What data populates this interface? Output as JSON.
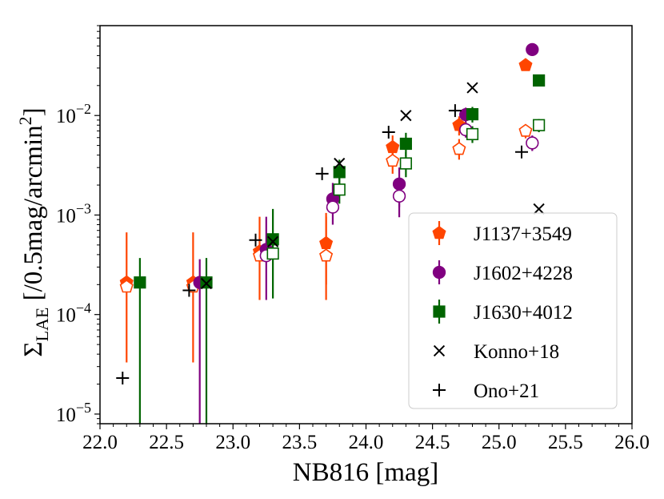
{
  "chart_data": {
    "type": "scatter",
    "xlabel": "NB816 [mag]",
    "ylabel": {
      "sigma": "Σ",
      "sub": "LAE",
      "main": " [/0.5mag/arcmin",
      "sup": "2",
      "end": "]"
    },
    "xlim": [
      22.0,
      26.0
    ],
    "ylim": [
      8e-06,
      0.08
    ],
    "yscale": "log",
    "grid": false,
    "legend_position": "lower-right",
    "x_ticks": [
      {
        "value": 22.0,
        "label": "22.0"
      },
      {
        "value": 22.5,
        "label": "22.5"
      },
      {
        "value": 23.0,
        "label": "23.0"
      },
      {
        "value": 23.5,
        "label": "23.5"
      },
      {
        "value": 24.0,
        "label": "24.0"
      },
      {
        "value": 24.5,
        "label": "24.5"
      },
      {
        "value": 25.0,
        "label": "25.0"
      },
      {
        "value": 25.5,
        "label": "25.5"
      },
      {
        "value": 26.0,
        "label": "26.0"
      }
    ],
    "y_ticks": [
      {
        "value": 1e-05,
        "base": "10",
        "exp": "−5"
      },
      {
        "value": 0.0001,
        "base": "10",
        "exp": "−4"
      },
      {
        "value": 0.001,
        "base": "10",
        "exp": "−3"
      },
      {
        "value": 0.01,
        "base": "10",
        "exp": "−2"
      }
    ],
    "series": [
      {
        "name": "J1137+3549",
        "marker": "pentagon",
        "color": "#ff4500",
        "filled": [
          {
            "x": 22.2,
            "y": 0.00021,
            "ylo": 3.3e-05,
            "yhi": 0.00067
          },
          {
            "x": 22.7,
            "y": 0.00021,
            "ylo": 3.3e-05,
            "yhi": 0.00067
          },
          {
            "x": 23.2,
            "y": 0.00043,
            "ylo": 0.00014,
            "yhi": 0.00096
          },
          {
            "x": 23.7,
            "y": 0.00052,
            "ylo": 0.0002,
            "yhi": 0.00105
          },
          {
            "x": 24.2,
            "y": 0.0048,
            "ylo": 0.0035,
            "yhi": 0.0063
          },
          {
            "x": 24.7,
            "y": 0.008,
            "ylo": 0.0063,
            "yhi": 0.0098
          },
          {
            "x": 25.2,
            "y": 0.032,
            "ylo": 0.029,
            "yhi": 0.035
          }
        ],
        "open": [
          {
            "x": 22.2,
            "y": 0.00019
          },
          {
            "x": 22.7,
            "y": 0.00019
          },
          {
            "x": 23.2,
            "y": 0.00039
          },
          {
            "x": 23.7,
            "y": 0.00039,
            "ylo": 0.00014,
            "yhi": 0.00096
          },
          {
            "x": 24.2,
            "y": 0.0035,
            "ylo": 0.0026,
            "yhi": 0.0046
          },
          {
            "x": 24.7,
            "y": 0.0046,
            "ylo": 0.0036,
            "yhi": 0.0058
          },
          {
            "x": 25.2,
            "y": 0.007,
            "ylo": 0.0059,
            "yhi": 0.0081
          }
        ]
      },
      {
        "name": "J1602+4228",
        "marker": "circle",
        "color": "#800080",
        "filled": [
          {
            "x": 22.75,
            "y": 0.00021,
            "ylo": 8e-06,
            "yhi": 0.00036
          },
          {
            "x": 23.25,
            "y": 0.00045,
            "ylo": 0.00014,
            "yhi": 0.00096
          },
          {
            "x": 23.75,
            "y": 0.00145,
            "ylo": 0.0008,
            "yhi": 0.0021
          },
          {
            "x": 24.25,
            "y": 0.00205,
            "ylo": 0.0012,
            "yhi": 0.003
          },
          {
            "x": 24.75,
            "y": 0.0102,
            "ylo": 0.008,
            "yhi": 0.012
          },
          {
            "x": 25.25,
            "y": 0.046,
            "ylo": 0.043,
            "yhi": 0.049
          }
        ],
        "open": [
          {
            "x": 23.25,
            "y": 0.00039
          },
          {
            "x": 23.75,
            "y": 0.0012
          },
          {
            "x": 24.25,
            "y": 0.00155,
            "ylo": 0.00095,
            "yhi": 0.0023
          },
          {
            "x": 24.75,
            "y": 0.0072,
            "ylo": 0.006,
            "yhi": 0.0085
          },
          {
            "x": 25.25,
            "y": 0.0053,
            "ylo": 0.0044,
            "yhi": 0.0063
          }
        ]
      },
      {
        "name": "J1630+4012",
        "marker": "square",
        "color": "#006400",
        "filled": [
          {
            "x": 22.3,
            "y": 0.00021,
            "ylo": 8e-06,
            "yhi": 0.00037
          },
          {
            "x": 22.8,
            "y": 0.00021,
            "ylo": 8e-06,
            "yhi": 0.00037
          },
          {
            "x": 23.3,
            "y": 0.00057,
            "ylo": 0.000145,
            "yhi": 0.00115
          },
          {
            "x": 23.8,
            "y": 0.0027,
            "ylo": 0.0019,
            "yhi": 0.0036
          },
          {
            "x": 24.3,
            "y": 0.0052,
            "ylo": 0.0039,
            "yhi": 0.0067
          },
          {
            "x": 24.8,
            "y": 0.0103,
            "ylo": 0.0085,
            "yhi": 0.0122
          },
          {
            "x": 25.3,
            "y": 0.0225,
            "ylo": 0.0205,
            "yhi": 0.025
          }
        ],
        "open": [
          {
            "x": 23.3,
            "y": 0.00041
          },
          {
            "x": 23.8,
            "y": 0.0018,
            "ylo": 0.0013,
            "yhi": 0.0025
          },
          {
            "x": 24.3,
            "y": 0.0033,
            "ylo": 0.0024,
            "yhi": 0.0043
          },
          {
            "x": 24.8,
            "y": 0.0065,
            "ylo": 0.0053,
            "yhi": 0.0078
          },
          {
            "x": 25.3,
            "y": 0.008,
            "ylo": 0.0068,
            "yhi": 0.0092
          }
        ]
      },
      {
        "name": "Konno+18",
        "marker": "x",
        "color": "#000000",
        "points": [
          {
            "x": 22.8,
            "y": 0.000205
          },
          {
            "x": 23.3,
            "y": 0.00054
          },
          {
            "x": 23.8,
            "y": 0.0033
          },
          {
            "x": 24.3,
            "y": 0.01
          },
          {
            "x": 24.8,
            "y": 0.019
          },
          {
            "x": 25.3,
            "y": 0.00115
          }
        ]
      },
      {
        "name": "Ono+21",
        "marker": "plus",
        "color": "#000000",
        "points": [
          {
            "x": 22.17,
            "y": 2.3e-05
          },
          {
            "x": 22.67,
            "y": 0.000175
          },
          {
            "x": 23.17,
            "y": 0.00056
          },
          {
            "x": 23.67,
            "y": 0.0026
          },
          {
            "x": 24.17,
            "y": 0.0068
          },
          {
            "x": 24.67,
            "y": 0.0112
          },
          {
            "x": 25.17,
            "y": 0.0043
          }
        ]
      }
    ]
  }
}
